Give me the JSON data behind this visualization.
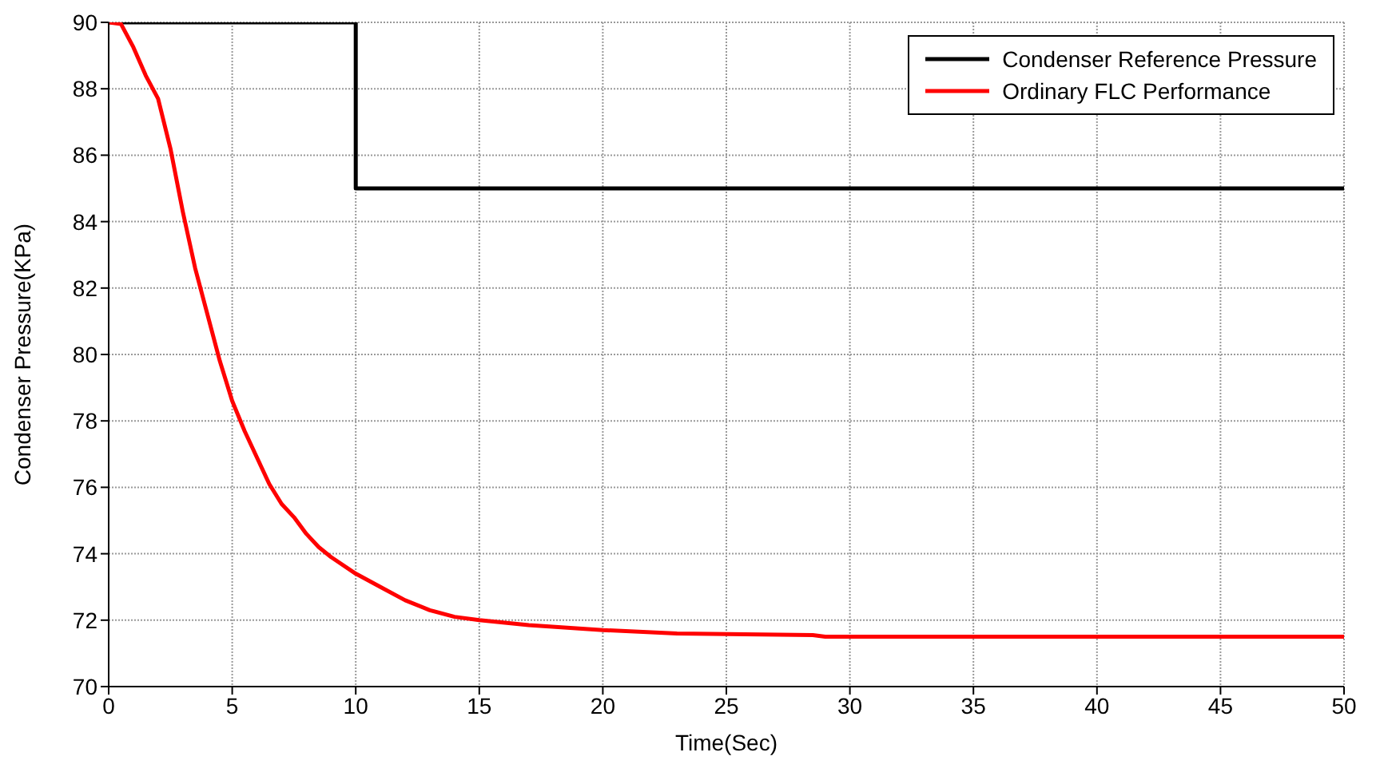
{
  "chart_data": {
    "type": "line",
    "xlabel": "Time(Sec)",
    "ylabel": "Condenser Pressure(KPa)",
    "xlim": [
      0,
      50
    ],
    "xticks": [
      0,
      5,
      10,
      15,
      20,
      25,
      30,
      35,
      40,
      45,
      50
    ],
    "ylim": [
      70,
      90
    ],
    "yticks": [
      70,
      72,
      74,
      76,
      78,
      80,
      82,
      84,
      86,
      88,
      90
    ],
    "grid": true,
    "legend": "top right",
    "marker": "none",
    "line_style": "solid",
    "series": [
      {
        "name": "Condenser Reference Pressure",
        "color": "#000000",
        "x": [
          0,
          10,
          10,
          50
        ],
        "values": [
          90,
          90,
          85,
          85
        ]
      },
      {
        "name": "Ordinary FLC Performance",
        "color": "#ff0000",
        "x": [
          0,
          0.5,
          1,
          1.5,
          2,
          2.5,
          3,
          3.5,
          4,
          4.5,
          5,
          5.5,
          6,
          6.5,
          7,
          7.5,
          8,
          8.5,
          9,
          10,
          11,
          12,
          13,
          14,
          15,
          17,
          20,
          23,
          28.5,
          29,
          35,
          40,
          50
        ],
        "values": [
          90,
          89.95,
          89.25,
          88.4,
          87.7,
          86.2,
          84.3,
          82.6,
          81.2,
          79.8,
          78.6,
          77.7,
          76.9,
          76.1,
          75.5,
          75.1,
          74.6,
          74.2,
          73.9,
          73.4,
          73.0,
          72.6,
          72.3,
          72.1,
          72.0,
          71.85,
          71.7,
          71.6,
          71.55,
          71.5,
          71.5,
          71.5,
          71.5
        ]
      }
    ]
  }
}
